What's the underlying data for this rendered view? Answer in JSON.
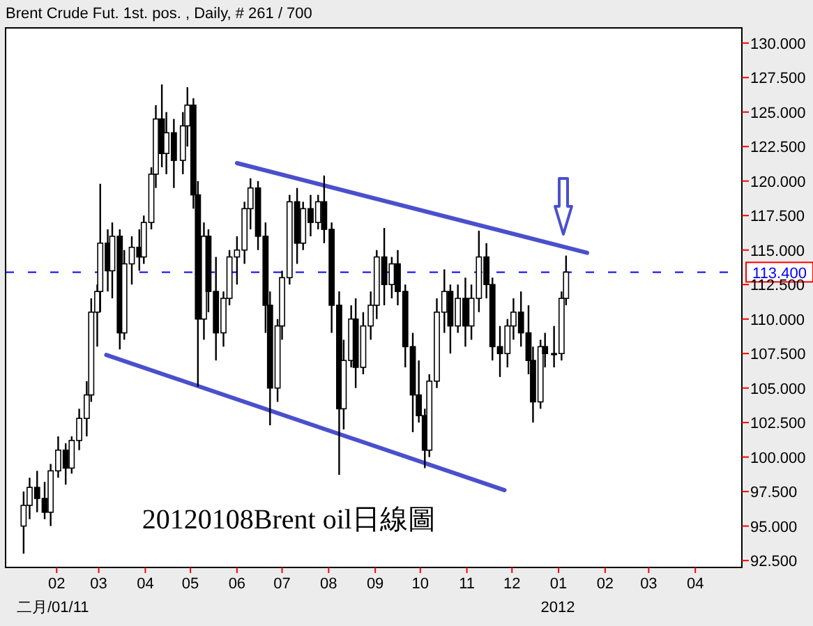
{
  "chart_data": {
    "type": "candlestick",
    "title": "Brent Crude Fut. 1st. pos. , Daily, # 261 / 700",
    "color": "#000000",
    "x": [
      "2011-01-10",
      "2011-01-14",
      "2011-01-19",
      "2011-01-24",
      "2011-01-28",
      "2011-02-02",
      "2011-02-07",
      "2011-02-11",
      "2011-02-16",
      "2011-02-21",
      "2011-02-24",
      "2011-02-28",
      "2011-03-02",
      "2011-03-07",
      "2011-03-10",
      "2011-03-15",
      "2011-03-18",
      "2011-03-23",
      "2011-03-28",
      "2011-03-31",
      "2011-04-05",
      "2011-04-08",
      "2011-04-12",
      "2011-04-15",
      "2011-04-20",
      "2011-04-26",
      "2011-04-29",
      "2011-05-03",
      "2011-05-06",
      "2011-05-10",
      "2011-05-13",
      "2011-05-18",
      "2011-05-23",
      "2011-05-27",
      "2011-06-01",
      "2011-06-06",
      "2011-06-10",
      "2011-06-15",
      "2011-06-20",
      "2011-06-23",
      "2011-06-28",
      "2011-07-01",
      "2011-07-06",
      "2011-07-11",
      "2011-07-15",
      "2011-07-20",
      "2011-07-25",
      "2011-07-29",
      "2011-08-03",
      "2011-08-08",
      "2011-08-11",
      "2011-08-16",
      "2011-08-19",
      "2011-08-24",
      "2011-08-29",
      "2011-09-02",
      "2011-09-07",
      "2011-09-12",
      "2011-09-16",
      "2011-09-21",
      "2011-09-26",
      "2011-09-30",
      "2011-10-04",
      "2011-10-07",
      "2011-10-12",
      "2011-10-17",
      "2011-10-21",
      "2011-10-26",
      "2011-10-31",
      "2011-11-04",
      "2011-11-09",
      "2011-11-14",
      "2011-11-18",
      "2011-11-23",
      "2011-11-28",
      "2011-12-02",
      "2011-12-07",
      "2011-12-12",
      "2011-12-15",
      "2011-12-20",
      "2011-12-23",
      "2011-12-29",
      "2012-01-03",
      "2012-01-06"
    ],
    "ohlc": [
      [
        95.0,
        97.5,
        93.0,
        96.5
      ],
      [
        96.5,
        98.5,
        95.5,
        97.8
      ],
      [
        97.8,
        99.0,
        96.0,
        97.0
      ],
      [
        97.0,
        98.2,
        95.5,
        96.0
      ],
      [
        96.0,
        99.5,
        95.0,
        99.0
      ],
      [
        99.0,
        101.5,
        98.5,
        100.5
      ],
      [
        100.5,
        101.0,
        98.0,
        99.2
      ],
      [
        99.2,
        101.5,
        98.8,
        101.2
      ],
      [
        101.2,
        103.5,
        100.5,
        102.8
      ],
      [
        102.8,
        105.5,
        101.5,
        104.5
      ],
      [
        104.5,
        111.5,
        104.0,
        110.5
      ],
      [
        110.5,
        112.5,
        108.0,
        112.0
      ],
      [
        112.0,
        119.8,
        110.5,
        115.5
      ],
      [
        115.5,
        116.5,
        112.0,
        113.5
      ],
      [
        113.5,
        117.0,
        111.5,
        116.0
      ],
      [
        116.0,
        116.5,
        107.8,
        109.0
      ],
      [
        109.0,
        115.0,
        108.5,
        114.0
      ],
      [
        114.0,
        116.0,
        112.5,
        115.2
      ],
      [
        115.2,
        116.5,
        113.5,
        114.5
      ],
      [
        114.5,
        117.5,
        114.0,
        117.0
      ],
      [
        117.0,
        121.0,
        116.5,
        120.5
      ],
      [
        120.5,
        125.5,
        119.5,
        124.5
      ],
      [
        124.5,
        127.0,
        121.0,
        122.0
      ],
      [
        122.0,
        125.0,
        120.5,
        123.5
      ],
      [
        123.5,
        124.5,
        119.5,
        121.5
      ],
      [
        121.5,
        125.0,
        120.5,
        124.0
      ],
      [
        124.0,
        126.8,
        122.5,
        125.5
      ],
      [
        125.5,
        126.0,
        118.0,
        119.0
      ],
      [
        119.0,
        120.0,
        105.1,
        110.0
      ],
      [
        110.0,
        117.0,
        108.5,
        116.0
      ],
      [
        116.0,
        116.5,
        110.5,
        112.0
      ],
      [
        112.0,
        114.5,
        107.0,
        109.0
      ],
      [
        109.0,
        112.0,
        108.0,
        111.5
      ],
      [
        111.5,
        115.0,
        111.0,
        114.5
      ],
      [
        114.5,
        116.0,
        112.5,
        115.0
      ],
      [
        115.0,
        118.5,
        114.0,
        118.0
      ],
      [
        118.0,
        120.2,
        116.5,
        119.5
      ],
      [
        119.5,
        120.0,
        115.0,
        116.0
      ],
      [
        116.0,
        117.0,
        109.0,
        111.0
      ],
      [
        111.0,
        112.0,
        102.3,
        105.0
      ],
      [
        105.0,
        110.0,
        104.0,
        109.5
      ],
      [
        109.5,
        113.5,
        108.5,
        113.0
      ],
      [
        113.0,
        119.0,
        112.5,
        118.5
      ],
      [
        118.5,
        119.5,
        114.0,
        115.5
      ],
      [
        115.5,
        118.5,
        115.0,
        118.0
      ],
      [
        118.0,
        119.0,
        116.0,
        117.0
      ],
      [
        117.0,
        119.0,
        116.5,
        118.5
      ],
      [
        118.5,
        120.4,
        115.5,
        116.5
      ],
      [
        116.5,
        117.0,
        109.0,
        111.0
      ],
      [
        111.0,
        112.0,
        98.7,
        103.5
      ],
      [
        103.5,
        108.5,
        102.0,
        107.0
      ],
      [
        107.0,
        111.0,
        106.5,
        110.0
      ],
      [
        110.0,
        111.5,
        105.0,
        106.5
      ],
      [
        106.5,
        110.5,
        106.0,
        109.5
      ],
      [
        109.5,
        112.0,
        108.5,
        111.0
      ],
      [
        111.0,
        115.0,
        110.0,
        114.5
      ],
      [
        114.5,
        116.6,
        111.0,
        112.5
      ],
      [
        112.5,
        114.5,
        111.5,
        114.0
      ],
      [
        114.0,
        115.0,
        111.0,
        112.0
      ],
      [
        112.0,
        112.5,
        106.5,
        108.0
      ],
      [
        108.0,
        109.0,
        101.8,
        104.5
      ],
      [
        104.5,
        107.0,
        102.5,
        103.0
      ],
      [
        103.0,
        103.5,
        99.2,
        100.5
      ],
      [
        100.5,
        106.0,
        100.0,
        105.5
      ],
      [
        105.5,
        111.5,
        105.0,
        110.5
      ],
      [
        110.5,
        113.6,
        109.0,
        112.0
      ],
      [
        112.0,
        112.5,
        107.5,
        109.5
      ],
      [
        109.5,
        112.5,
        109.0,
        111.5
      ],
      [
        111.5,
        113.0,
        108.0,
        109.5
      ],
      [
        109.5,
        112.5,
        108.5,
        111.5
      ],
      [
        111.5,
        116.4,
        110.5,
        114.5
      ],
      [
        114.5,
        115.5,
        111.5,
        112.5
      ],
      [
        112.5,
        113.0,
        107.0,
        108.0
      ],
      [
        108.0,
        109.5,
        105.8,
        107.5
      ],
      [
        107.5,
        110.0,
        106.5,
        109.5
      ],
      [
        109.5,
        111.5,
        108.5,
        110.5
      ],
      [
        110.5,
        112.0,
        108.0,
        109.0
      ],
      [
        109.0,
        111.0,
        106.0,
        107.0
      ],
      [
        107.0,
        108.0,
        102.5,
        104.0
      ],
      [
        104.0,
        108.5,
        103.5,
        108.0
      ],
      [
        108.0,
        109.0,
        106.5,
        107.5
      ],
      [
        107.5,
        109.5,
        106.5,
        107.5
      ],
      [
        107.5,
        112.0,
        107.0,
        111.5
      ],
      [
        111.5,
        114.6,
        111.0,
        113.4
      ]
    ],
    "series": [
      {
        "type": "line",
        "color": "#4a50cc",
        "x": [
          "2011-06-01",
          "2012-01-20"
        ],
        "values": [
          121.3,
          114.8
        ]
      },
      {
        "type": "line",
        "color": "#4a50cc",
        "x": [
          "2011-03-06",
          "2011-11-26"
        ],
        "values": [
          107.4,
          97.6
        ]
      }
    ],
    "xlim": [
      "2010-12-29",
      "2012-05-02"
    ],
    "xticks": [
      {
        "value": "2011-02-01",
        "label": "02"
      },
      {
        "value": "2011-03-01",
        "label": "03"
      },
      {
        "value": "2011-04-01",
        "label": "04"
      },
      {
        "value": "2011-05-01",
        "label": "05"
      },
      {
        "value": "2011-06-01",
        "label": "06"
      },
      {
        "value": "2011-07-01",
        "label": "07"
      },
      {
        "value": "2011-08-01",
        "label": "08"
      },
      {
        "value": "2011-09-01",
        "label": "09"
      },
      {
        "value": "2011-10-01",
        "label": "10"
      },
      {
        "value": "2011-11-01",
        "label": "11"
      },
      {
        "value": "2011-12-01",
        "label": "12"
      },
      {
        "value": "2012-01-01",
        "label": "01"
      },
      {
        "value": "2012-02-01",
        "label": "02"
      },
      {
        "value": "2012-03-01",
        "label": "03"
      },
      {
        "value": "2012-04-01",
        "label": "04"
      }
    ],
    "ylim": [
      92.0,
      131.1
    ],
    "yticks": [
      {
        "value": 92.5,
        "label": "92.500"
      },
      {
        "value": 95,
        "label": "95.000"
      },
      {
        "value": 97.5,
        "label": "97.500"
      },
      {
        "value": 100,
        "label": "100.000"
      },
      {
        "value": 102.5,
        "label": "102.500"
      },
      {
        "value": 105,
        "label": "105.000"
      },
      {
        "value": 107.5,
        "label": "107.500"
      },
      {
        "value": 110,
        "label": "110.000"
      },
      {
        "value": 112.5,
        "label": "112.500"
      },
      {
        "value": 115,
        "label": "115.000"
      },
      {
        "value": 117.5,
        "label": "117.500"
      },
      {
        "value": 120,
        "label": "120.000"
      },
      {
        "value": 122.5,
        "label": "122.500"
      },
      {
        "value": 125,
        "label": "125.000"
      },
      {
        "value": 127.5,
        "label": "127.500"
      },
      {
        "value": 130,
        "label": "130.000"
      }
    ],
    "ref_lines": [
      {
        "axis": "y",
        "value": 113.4,
        "label": "113.400",
        "color": "#0000ff",
        "line_style": "dashed"
      }
    ],
    "annotations": [
      "20120108Brent oil日線圖",
      "二月/01/11",
      "2012"
    ]
  }
}
